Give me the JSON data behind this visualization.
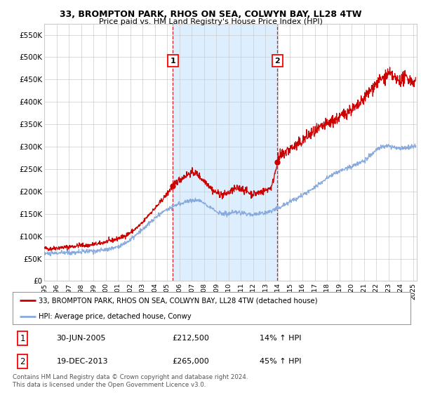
{
  "title": "33, BROMPTON PARK, RHOS ON SEA, COLWYN BAY, LL28 4TW",
  "subtitle": "Price paid vs. HM Land Registry's House Price Index (HPI)",
  "yticks": [
    0,
    50000,
    100000,
    150000,
    200000,
    250000,
    300000,
    350000,
    400000,
    450000,
    500000,
    550000
  ],
  "ylim": [
    0,
    575000
  ],
  "xlim_start": 1995.0,
  "xlim_end": 2025.3,
  "bg_color": "#ffffff",
  "plot_bg": "#ffffff",
  "grid_color": "#cccccc",
  "red_line_color": "#cc0000",
  "blue_line_color": "#88aadd",
  "shade_color": "#ddeeff",
  "marker1_date": 2005.45,
  "marker2_date": 2013.95,
  "marker1_value": 212500,
  "marker2_value": 265000,
  "legend_label_red": "33, BROMPTON PARK, RHOS ON SEA, COLWYN BAY, LL28 4TW (detached house)",
  "legend_label_blue": "HPI: Average price, detached house, Conwy",
  "table_rows": [
    {
      "num": "1",
      "date": "30-JUN-2005",
      "price": "£212,500",
      "hpi": "14% ↑ HPI"
    },
    {
      "num": "2",
      "date": "19-DEC-2013",
      "price": "£265,000",
      "hpi": "45% ↑ HPI"
    }
  ],
  "footer": "Contains HM Land Registry data © Crown copyright and database right 2024.\nThis data is licensed under the Open Government Licence v3.0.",
  "xtick_years": [
    1995,
    1996,
    1997,
    1998,
    1999,
    2000,
    2001,
    2002,
    2003,
    2004,
    2005,
    2006,
    2007,
    2008,
    2009,
    2010,
    2011,
    2012,
    2013,
    2014,
    2015,
    2016,
    2017,
    2018,
    2019,
    2020,
    2021,
    2022,
    2023,
    2024,
    2025
  ]
}
